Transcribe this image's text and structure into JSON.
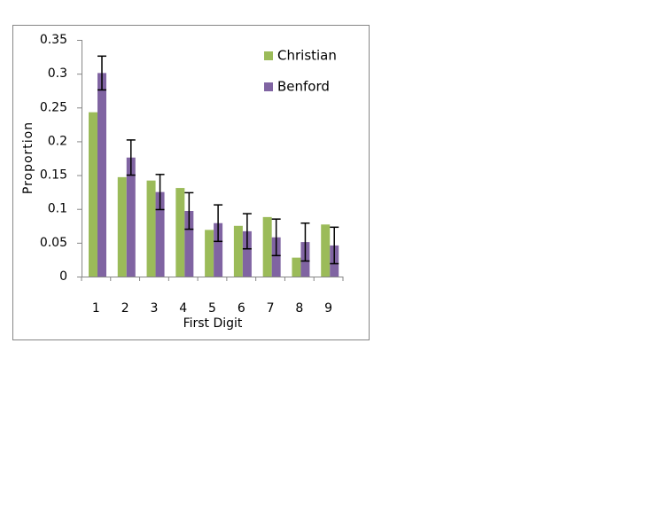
{
  "chart_data": {
    "type": "bar",
    "x_label": "First Digit",
    "y_label": "Proportion",
    "categories": [
      "1",
      "2",
      "3",
      "4",
      "5",
      "6",
      "7",
      "8",
      "9"
    ],
    "series": [
      {
        "name": "Christian",
        "color": "#9bbb59",
        "values": [
          0.243,
          0.147,
          0.142,
          0.131,
          0.069,
          0.075,
          0.088,
          0.028,
          0.077
        ]
      },
      {
        "name": "Benford",
        "color": "#8064a2",
        "values": [
          0.301,
          0.176,
          0.125,
          0.097,
          0.079,
          0.067,
          0.058,
          0.051,
          0.046
        ],
        "errors": [
          0.025,
          0.026,
          0.026,
          0.027,
          0.027,
          0.026,
          0.027,
          0.028,
          0.027
        ]
      }
    ],
    "ylim": [
      0,
      0.35
    ],
    "yticks": [
      0,
      0.05,
      0.1,
      0.15,
      0.2,
      0.25,
      0.3,
      0.35
    ],
    "grid": false,
    "legend": "top-right"
  }
}
